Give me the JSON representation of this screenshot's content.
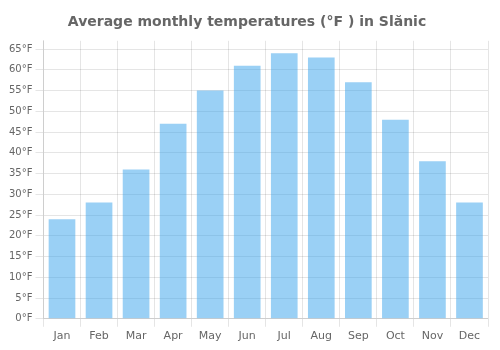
{
  "chart_data": {
    "type": "bar",
    "title": "Average monthly temperatures (°F ) in Slănic",
    "categories": [
      "Jan",
      "Feb",
      "Mar",
      "Apr",
      "May",
      "Jun",
      "Jul",
      "Aug",
      "Sep",
      "Oct",
      "Nov",
      "Dec"
    ],
    "values": [
      24,
      28,
      36,
      47,
      55,
      61,
      64,
      63,
      57,
      48,
      38,
      28
    ],
    "ylim": [
      0,
      67
    ],
    "yticks": [
      {
        "value": 0,
        "label": "0°F"
      },
      {
        "value": 5,
        "label": "5°F"
      },
      {
        "value": 10,
        "label": "10°F"
      },
      {
        "value": 15,
        "label": "15°F"
      },
      {
        "value": 20,
        "label": "20°F"
      },
      {
        "value": 25,
        "label": "25°F"
      },
      {
        "value": 30,
        "label": "30°F"
      },
      {
        "value": 35,
        "label": "35°F"
      },
      {
        "value": 40,
        "label": "40°F"
      },
      {
        "value": 45,
        "label": "45°F"
      },
      {
        "value": 50,
        "label": "50°F"
      },
      {
        "value": 55,
        "label": "55°F"
      },
      {
        "value": 60,
        "label": "60°F"
      },
      {
        "value": 65,
        "label": "65°F"
      }
    ],
    "grid": true
  }
}
